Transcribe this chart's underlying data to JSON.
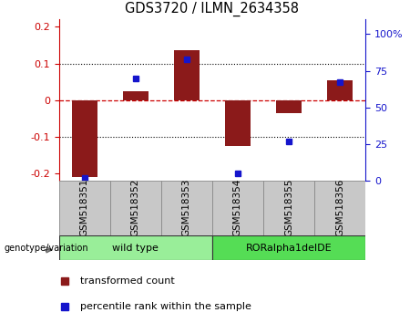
{
  "title": "GDS3720 / ILMN_2634358",
  "samples": [
    "GSM518351",
    "GSM518352",
    "GSM518353",
    "GSM518354",
    "GSM518355",
    "GSM518356"
  ],
  "red_values": [
    -0.21,
    0.025,
    0.135,
    -0.125,
    -0.035,
    0.055
  ],
  "blue_values": [
    2,
    70,
    83,
    5,
    27,
    67
  ],
  "ylim_left": [
    -0.22,
    0.22
  ],
  "ylim_right": [
    0,
    110
  ],
  "yticks_left": [
    -0.2,
    -0.1,
    0.0,
    0.1,
    0.2
  ],
  "ytick_left_labels": [
    "-0.2",
    "-0.1",
    "0",
    "0.1",
    "0.2"
  ],
  "yticks_right": [
    0,
    25,
    50,
    75,
    100
  ],
  "ytick_right_labels": [
    "0",
    "25",
    "50",
    "75",
    "100%"
  ],
  "red_color": "#8B1A1A",
  "blue_color": "#1515CC",
  "zero_line_color": "#CC0000",
  "grid_color": "#000000",
  "groups": [
    {
      "label": "wild type",
      "indices": [
        0,
        1,
        2
      ],
      "color": "#99EE99"
    },
    {
      "label": "RORalpha1delDE",
      "indices": [
        3,
        4,
        5
      ],
      "color": "#55DD55"
    }
  ],
  "group_label": "genotype/variation",
  "legend_red": "transformed count",
  "legend_blue": "percentile rank within the sample",
  "bar_width": 0.5,
  "blue_marker_size": 5,
  "label_area_color": "#C8C8C8"
}
